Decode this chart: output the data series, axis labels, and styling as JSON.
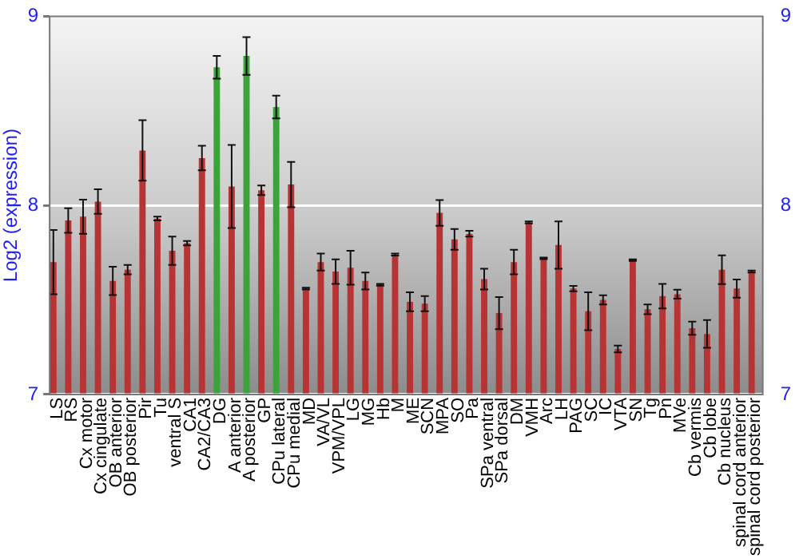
{
  "chart_data": {
    "type": "bar",
    "ylabel": "Log2 (expression)",
    "categories": [
      "LS",
      "RS",
      "Cx motor",
      "Cx cingulate",
      "OB anterior",
      "OB posterior",
      "Pir",
      "Tu",
      "ventral S",
      "CA1",
      "CA2/CA3",
      "DG",
      "A anterior",
      "A posterior",
      "GP",
      "CPu lateral",
      "CPu medial",
      "MD",
      "VA/VL",
      "VPM/VPL",
      "LG",
      "MG",
      "Hb",
      "M",
      "ME",
      "SCN",
      "MPA",
      "SO",
      "Pa",
      "SPa ventral",
      "SPa dorsal",
      "DM",
      "VMH",
      "Arc",
      "LH",
      "PAG",
      "SC",
      "IC",
      "VTA",
      "SN",
      "Tg",
      "Pn",
      "MVe",
      "Cb vermis",
      "Cb lobe",
      "Cb nucleus",
      "spinal cord anterior",
      "spinal cord posterior"
    ],
    "values": [
      7.7,
      7.92,
      7.94,
      8.02,
      7.6,
      7.66,
      8.29,
      7.93,
      7.76,
      7.8,
      8.25,
      8.73,
      8.1,
      8.79,
      8.08,
      8.52,
      8.11,
      7.56,
      7.7,
      7.65,
      7.67,
      7.6,
      7.58,
      7.74,
      7.49,
      7.48,
      7.96,
      7.82,
      7.85,
      7.61,
      7.43,
      7.7,
      7.91,
      7.72,
      7.79,
      7.56,
      7.44,
      7.5,
      7.24,
      7.71,
      7.45,
      7.52,
      7.53,
      7.35,
      7.32,
      7.66,
      7.56,
      7.65
    ],
    "errors": [
      0.17,
      0.065,
      0.09,
      0.065,
      0.075,
      0.025,
      0.16,
      0.01,
      0.075,
      0.012,
      0.065,
      0.06,
      0.22,
      0.1,
      0.025,
      0.06,
      0.12,
      0.005,
      0.045,
      0.065,
      0.09,
      0.045,
      0.005,
      0.005,
      0.05,
      0.04,
      0.068,
      0.055,
      0.015,
      0.055,
      0.085,
      0.065,
      0.005,
      0.004,
      0.125,
      0.014,
      0.1,
      0.024,
      0.018,
      0.004,
      0.026,
      0.065,
      0.024,
      0.035,
      0.073,
      0.076,
      0.048,
      0.005
    ],
    "colors": [
      "#b83434",
      "#b83434",
      "#b83434",
      "#b83434",
      "#b83434",
      "#b83434",
      "#b83434",
      "#b83434",
      "#b83434",
      "#b83434",
      "#b83434",
      "#3aa33a",
      "#b83434",
      "#3aa33a",
      "#b83434",
      "#3aa33a",
      "#b83434",
      "#b83434",
      "#b83434",
      "#b83434",
      "#b83434",
      "#b83434",
      "#b83434",
      "#b83434",
      "#b83434",
      "#b83434",
      "#b83434",
      "#b83434",
      "#b83434",
      "#b83434",
      "#b83434",
      "#b83434",
      "#b83434",
      "#b83434",
      "#b83434",
      "#b83434",
      "#b83434",
      "#b83434",
      "#b83434",
      "#b83434",
      "#b83434",
      "#b83434",
      "#b83434",
      "#b83434",
      "#b83434",
      "#b83434",
      "#b83434",
      "#b83434"
    ],
    "ylim": [
      7,
      9
    ],
    "yticks": [
      7,
      8,
      9
    ],
    "y2lim": [
      7,
      9
    ],
    "y2ticks": [
      7,
      8,
      9
    ],
    "grid": "y",
    "legend": false
  }
}
